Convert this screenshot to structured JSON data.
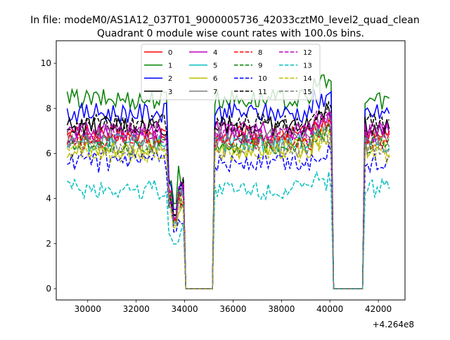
{
  "chart_data": {
    "type": "line",
    "suptitle": "In file: modeM0/AS1A12_037T01_9000005736_42033cztM0_level2_quad_clean",
    "title": "Quadrant 0 module wise count rates with 100.0s bins.",
    "xlabel": "",
    "ylabel": "",
    "x_offset_label": "+4.264e8",
    "xlim": [
      28700,
      43100
    ],
    "ylim": [
      -0.5,
      11.0
    ],
    "xticks": [
      30000,
      32000,
      34000,
      36000,
      38000,
      40000,
      42000
    ],
    "yticks": [
      0,
      2,
      4,
      6,
      8,
      10
    ],
    "segments": [
      {
        "name": "on1",
        "start": 29150,
        "end": 33950
      },
      {
        "name": "gap1",
        "start": 34050,
        "end": 35150,
        "value": 0
      },
      {
        "name": "on2",
        "start": 35250,
        "end": 40050
      },
      {
        "name": "gap2",
        "start": 40150,
        "end": 41350,
        "value": 0
      },
      {
        "name": "on3",
        "start": 41450,
        "end": 42450
      }
    ],
    "legend": {
      "location": "upper center",
      "columns": 4
    },
    "series": [
      {
        "name": "0",
        "color": "#ff0000",
        "dash": "solid",
        "level": 6.8
      },
      {
        "name": "1",
        "color": "#008000",
        "dash": "solid",
        "level": 8.4
      },
      {
        "name": "2",
        "color": "#0000ff",
        "dash": "solid",
        "level": 7.8
      },
      {
        "name": "3",
        "color": "#000000",
        "dash": "solid",
        "level": 7.2
      },
      {
        "name": "4",
        "color": "#bf00bf",
        "dash": "solid",
        "level": 7.0
      },
      {
        "name": "5",
        "color": "#00bfbf",
        "dash": "solid",
        "level": 6.5
      },
      {
        "name": "6",
        "color": "#bfbf00",
        "dash": "solid",
        "level": 6.2
      },
      {
        "name": "7",
        "color": "#808080",
        "dash": "solid",
        "level": 6.7
      },
      {
        "name": "8",
        "color": "#ff0000",
        "dash": "dashed",
        "level": 6.6
      },
      {
        "name": "9",
        "color": "#008000",
        "dash": "dashed",
        "level": 6.4
      },
      {
        "name": "10",
        "color": "#0000ff",
        "dash": "dashed",
        "level": 5.6
      },
      {
        "name": "11",
        "color": "#000000",
        "dash": "dashed",
        "level": 7.3
      },
      {
        "name": "12",
        "color": "#bf00bf",
        "dash": "dashed",
        "level": 6.9
      },
      {
        "name": "13",
        "color": "#00bfbf",
        "dash": "dashed",
        "level": 4.4
      },
      {
        "name": "14",
        "color": "#bfbf00",
        "dash": "dashed",
        "level": 6.0
      },
      {
        "name": "15",
        "color": "#808080",
        "dash": "dashed",
        "level": 6.3
      }
    ]
  }
}
